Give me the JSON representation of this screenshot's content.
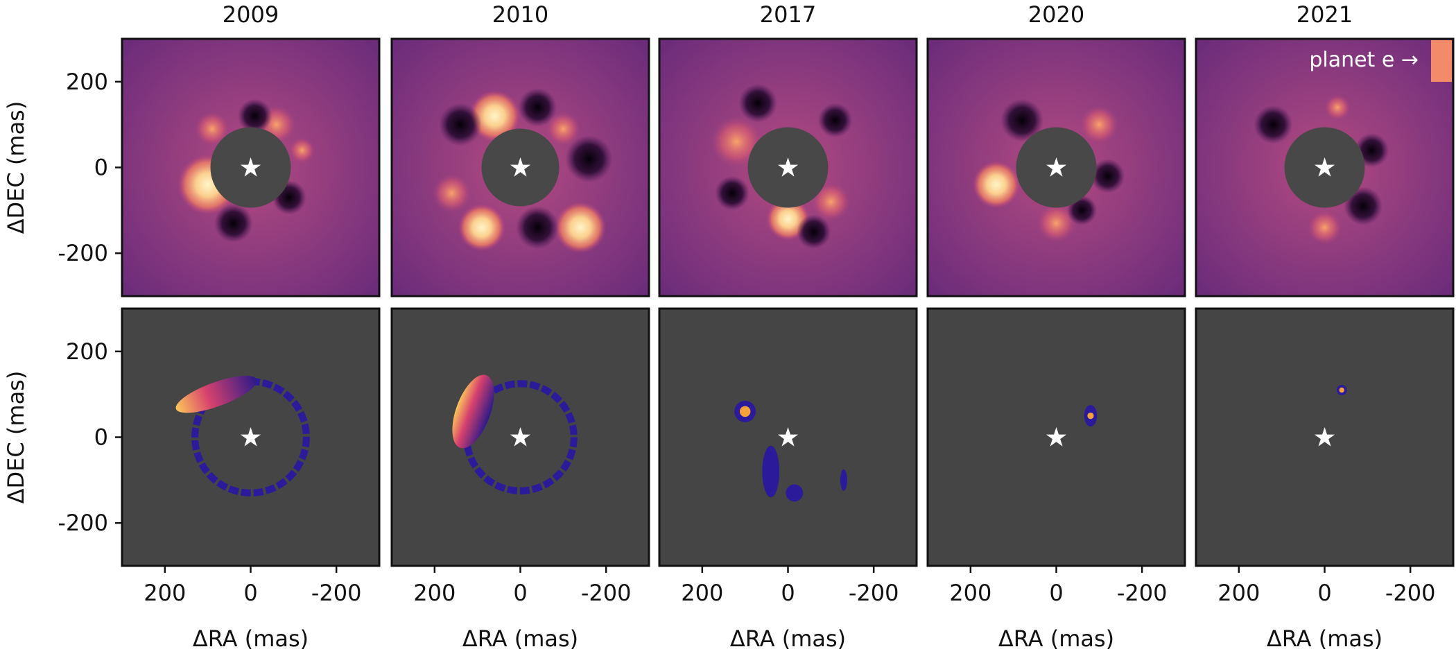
{
  "figure": {
    "columns": [
      {
        "year": "2009"
      },
      {
        "year": "2010"
      },
      {
        "year": "2017"
      },
      {
        "year": "2020"
      },
      {
        "year": "2021"
      }
    ],
    "rows": [
      {
        "kind": "residual image",
        "background": "magma"
      },
      {
        "kind": "detection map",
        "background": "#454545"
      }
    ],
    "x_label": "ΔRA (mas)",
    "y_label": "ΔDEC (mas)",
    "x_ticks": [
      "200",
      "0",
      "-200"
    ],
    "y_ticks": [
      "200",
      "0",
      "-200"
    ],
    "axis_range_mas": [
      -300,
      300
    ],
    "annotation": "planet e →",
    "star_symbol": "★",
    "colors": {
      "mask": "#484848",
      "detection_background": "#454545",
      "colormap": "magma"
    }
  }
}
